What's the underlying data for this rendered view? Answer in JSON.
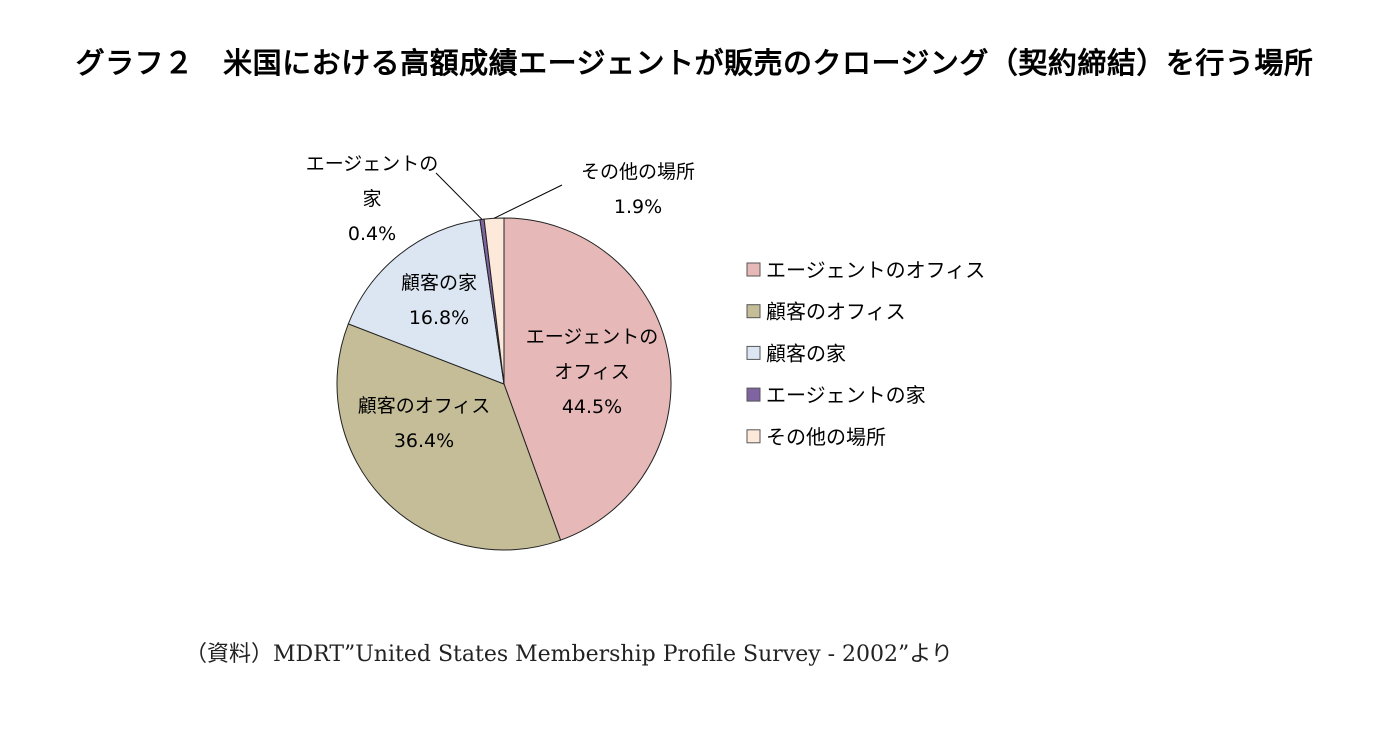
{
  "title": "グラフ２　米国における高額成績エージェントが販売のクロージング（契約締結）を行う場所",
  "source": "（資料）MDRT”United States Membership Profile Survey - 2002”より",
  "chart_data": {
    "type": "pie",
    "unit": "%",
    "categories": [
      "エージェントのオフィス",
      "顧客のオフィス",
      "顧客の家",
      "エージェントの家",
      "その他の場所"
    ],
    "values": [
      44.5,
      36.4,
      16.8,
      0.4,
      1.9
    ],
    "value_labels": [
      "44.5%",
      "36.4%",
      "16.8%",
      "0.4%",
      "1.9%"
    ],
    "slice_labels": [
      [
        "エージェントの",
        "オフィス"
      ],
      [
        "顧客のオフィス"
      ],
      [
        "顧客の家"
      ],
      [
        "エージェントの",
        "家"
      ],
      [
        "その他の場所"
      ]
    ],
    "colors": [
      "#e6b9b8",
      "#c4bd97",
      "#dce6f2",
      "#8064a2",
      "#fde9d9"
    ],
    "legend": {
      "position": "right",
      "entries": [
        "エージェントのオフィス",
        "顧客のオフィス",
        "顧客の家",
        "エージェントの家",
        "その他の場所"
      ]
    },
    "start": "top, clockwise"
  }
}
